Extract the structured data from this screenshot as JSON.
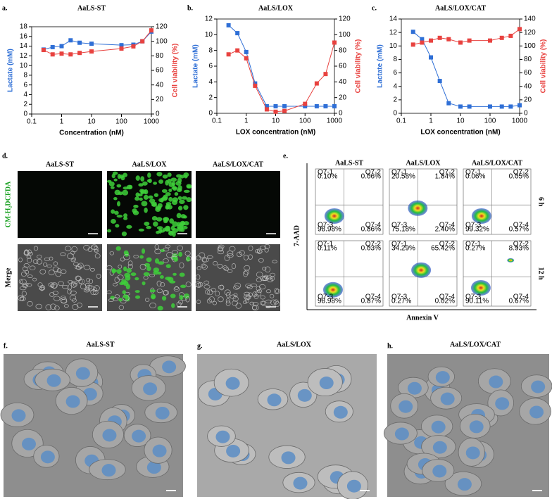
{
  "chart_data": [
    {
      "type": "line",
      "panel_label": "a.",
      "title": "AaLS-ST",
      "xlabel": "Concentration (nM)",
      "ylabel": "Lactate (mM)",
      "y2label": "Cell viability (%)",
      "x_scale": "log",
      "xlim": [
        0.1,
        1000
      ],
      "xticks": [
        0.1,
        1,
        10,
        100,
        1000
      ],
      "ylim": [
        0,
        18
      ],
      "yticks": [
        0,
        2,
        4,
        6,
        8,
        10,
        12,
        14,
        16,
        18
      ],
      "y2lim": [
        0,
        120
      ],
      "y2ticks": [
        0,
        20,
        40,
        60,
        80,
        100,
        120
      ],
      "x": [
        0.25,
        0.5,
        1,
        2,
        4,
        10,
        100,
        250,
        500,
        1000
      ],
      "series": [
        {
          "color": "#2f6fd6",
          "values": [
            13.3,
            13.8,
            14,
            15.2,
            14.7,
            14.5,
            14.2,
            14.3,
            15,
            17
          ]
        },
        {
          "color": "#e8423f",
          "axis": "y2",
          "values": [
            88,
            82,
            83,
            82,
            84,
            86,
            90,
            93,
            100,
            115
          ]
        }
      ]
    },
    {
      "type": "line",
      "panel_label": "b.",
      "title": "AaLS/LOX",
      "xlabel": "LOX concentration (nM)",
      "ylabel": "Lactate (mM)",
      "y2label": "Cell viability (%)",
      "x_scale": "log",
      "xlim": [
        0.1,
        1000
      ],
      "xticks": [
        0.1,
        1,
        10,
        100,
        1000
      ],
      "ylim": [
        0,
        12
      ],
      "yticks": [
        0,
        2,
        4,
        6,
        8,
        10,
        12
      ],
      "y2lim": [
        0,
        120
      ],
      "y2ticks": [
        0,
        20,
        40,
        60,
        80,
        100,
        120
      ],
      "x": [
        0.25,
        0.5,
        1,
        2,
        5,
        10,
        20,
        100,
        250,
        500,
        1000
      ],
      "series": [
        {
          "color": "#2f6fd6",
          "values": [
            11.2,
            10.2,
            7.8,
            3.8,
            0.9,
            0.9,
            0.9,
            0.9,
            0.9,
            0.9,
            0.9
          ]
        },
        {
          "color": "#e8423f",
          "axis": "y2",
          "values": [
            75,
            80,
            70,
            35,
            5,
            2,
            3,
            12,
            38,
            50,
            90
          ]
        }
      ]
    },
    {
      "type": "line",
      "panel_label": "c.",
      "title": "AaLS/LOX/CAT",
      "xlabel": "LOX concentration (nM)",
      "ylabel": "Lactate (mM)",
      "y2label": "Cell viability (%)",
      "x_scale": "log",
      "xlim": [
        0.1,
        1000
      ],
      "xticks": [
        0.1,
        1,
        10,
        100,
        1000
      ],
      "ylim": [
        0,
        14
      ],
      "yticks": [
        0,
        2,
        4,
        6,
        8,
        10,
        12,
        14
      ],
      "y2lim": [
        0,
        140
      ],
      "y2ticks": [
        0,
        20,
        40,
        60,
        80,
        100,
        120,
        140
      ],
      "x": [
        0.25,
        0.5,
        1,
        2,
        4,
        10,
        20,
        100,
        250,
        500,
        1000
      ],
      "series": [
        {
          "color": "#2f6fd6",
          "values": [
            12.1,
            11,
            8.3,
            4.8,
            1.5,
            1,
            1,
            1,
            1,
            1,
            1.2
          ]
        },
        {
          "color": "#e8423f",
          "axis": "y2",
          "values": [
            102,
            105,
            108,
            112,
            110,
            105,
            108,
            108,
            112,
            115,
            125
          ]
        }
      ]
    }
  ],
  "panel_d": {
    "label": "d.",
    "columns": [
      "AaLS-ST",
      "AaLS/LOX",
      "AaLS/LOX/CAT"
    ],
    "rows": [
      "CM-H₂DCFDA",
      "Merge"
    ]
  },
  "panel_e": {
    "label": "e.",
    "columns": [
      "AaLS-ST",
      "AaLS/LOX",
      "AaLS/LOX/CAT"
    ],
    "rows": [
      "6 h",
      "12 h"
    ],
    "y_label": "7-AAD",
    "x_label": "Annexin V",
    "quadrant_names": [
      "Q7-1",
      "Q7-2",
      "Q7-3",
      "Q7-4"
    ],
    "quadrants": [
      [
        [
          "0.10%",
          "0.06%",
          "98.98%",
          "0.86%"
        ],
        [
          "20.58%",
          "1.84%",
          "75.18%",
          "2.40%"
        ],
        [
          "0.06%",
          "0.05%",
          "99.32%",
          "0.57%"
        ]
      ],
      [
        [
          "0.11%",
          "0.03%",
          "98.98%",
          "0.87%"
        ],
        [
          "34.29%",
          "65.42%",
          "0.27%",
          "0.02%"
        ],
        [
          "0.27%",
          "8.93%",
          "90.11%",
          "0.67%"
        ]
      ]
    ]
  },
  "panels_fgh": [
    {
      "label": "f.",
      "title": "AaLS-ST"
    },
    {
      "label": "g.",
      "title": "AaLS/LOX"
    },
    {
      "label": "h.",
      "title": "AaLS/LOX/CAT"
    }
  ]
}
